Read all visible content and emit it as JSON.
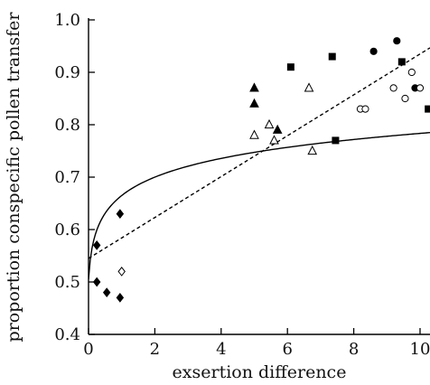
{
  "chart_data": {
    "type": "scatter",
    "xlabel": "exsertion difference",
    "ylabel": "proportion conspecific pollen transfer",
    "xlim": [
      0,
      10.3
    ],
    "ylim": [
      0.4,
      1.0
    ],
    "xticks": [
      0,
      2,
      4,
      6,
      8,
      10
    ],
    "yticks": [
      0.4,
      0.5,
      0.6,
      0.7,
      0.8,
      0.9,
      1.0
    ],
    "grid": false,
    "series": [
      {
        "marker": "diamond",
        "fill": "filled",
        "points": [
          [
            0.25,
            0.57
          ],
          [
            0.25,
            0.5
          ],
          [
            0.55,
            0.48
          ],
          [
            0.95,
            0.63
          ],
          [
            0.95,
            0.47
          ]
        ]
      },
      {
        "marker": "diamond",
        "fill": "open",
        "points": [
          [
            1.0,
            0.52
          ]
        ]
      },
      {
        "marker": "triangle",
        "fill": "filled",
        "points": [
          [
            5.0,
            0.87
          ],
          [
            5.0,
            0.84
          ],
          [
            5.7,
            0.79
          ]
        ]
      },
      {
        "marker": "triangle",
        "fill": "open",
        "points": [
          [
            5.0,
            0.78
          ],
          [
            5.45,
            0.8
          ],
          [
            5.6,
            0.77
          ],
          [
            6.65,
            0.87
          ],
          [
            6.75,
            0.75
          ]
        ]
      },
      {
        "marker": "square",
        "fill": "filled",
        "points": [
          [
            6.1,
            0.91
          ],
          [
            7.35,
            0.93
          ],
          [
            7.45,
            0.77
          ],
          [
            9.45,
            0.92
          ],
          [
            10.25,
            0.83
          ]
        ]
      },
      {
        "marker": "circle",
        "fill": "filled",
        "points": [
          [
            8.6,
            0.94
          ],
          [
            9.3,
            0.96
          ],
          [
            9.85,
            0.87
          ]
        ]
      },
      {
        "marker": "circle",
        "fill": "open",
        "points": [
          [
            8.2,
            0.83
          ],
          [
            8.35,
            0.83
          ],
          [
            9.2,
            0.87
          ],
          [
            9.55,
            0.85
          ],
          [
            9.75,
            0.9
          ],
          [
            10.0,
            0.87
          ]
        ]
      }
    ],
    "fits": [
      {
        "kind": "logarithmic",
        "style": "solid",
        "equation": {
          "a": 0.505,
          "b": 0.155,
          "c": 0.05
        }
      },
      {
        "kind": "linear",
        "style": "dashed",
        "equation": {
          "intercept": 0.545,
          "slope": 0.039
        }
      }
    ]
  }
}
